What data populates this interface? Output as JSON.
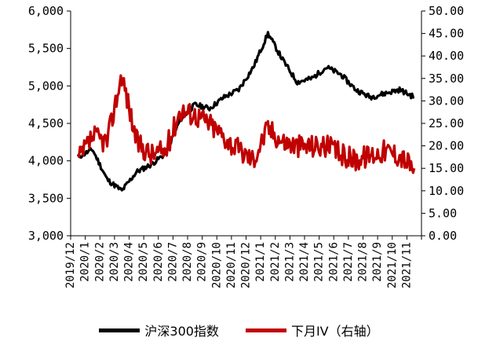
{
  "chart_data": {
    "type": "line",
    "x": [
      "2019/12",
      "2020/1",
      "2020/2",
      "2020/3",
      "2020/4",
      "2020/5",
      "2020/6",
      "2020/7",
      "2020/8",
      "2020/9",
      "2020/10",
      "2020/11",
      "2020/12",
      "2021/1",
      "2021/2",
      "2021/3",
      "2021/4",
      "2021/5",
      "2021/6",
      "2021/7",
      "2021/8",
      "2021/9",
      "2021/10",
      "2021/11"
    ],
    "y_left_ticks": [
      "3,000",
      "3,500",
      "4,000",
      "4,500",
      "5,000",
      "5,500",
      "6,000"
    ],
    "y_right_ticks": [
      "0.00",
      "5.00",
      "10.00",
      "15.00",
      "20.00",
      "25.00",
      "30.00",
      "35.00",
      "40.00",
      "45.00",
      "50.00"
    ],
    "ylim_left": [
      3000,
      6000
    ],
    "ylim_right": [
      0,
      50
    ],
    "grid": false,
    "legend_position": "bottom",
    "series": [
      {
        "name": "沪深300指数",
        "axis": "left",
        "color": "#000000",
        "values": [
          4050,
          4150,
          3750,
          3600,
          3850,
          3950,
          4100,
          4550,
          4750,
          4700,
          4850,
          4950,
          5250,
          5700,
          5350,
          5050,
          5100,
          5250,
          5150,
          4950,
          4850,
          4900,
          4950,
          4850
        ]
      },
      {
        "name": "下月IV（右轴）",
        "axis": "right",
        "color": "#c00000",
        "values": [
          16.5,
          22,
          21,
          36,
          21,
          18,
          19,
          28,
          27,
          25,
          22,
          19,
          17,
          24,
          21,
          20,
          20,
          20,
          18,
          17,
          18,
          19,
          18,
          15
        ]
      }
    ]
  }
}
